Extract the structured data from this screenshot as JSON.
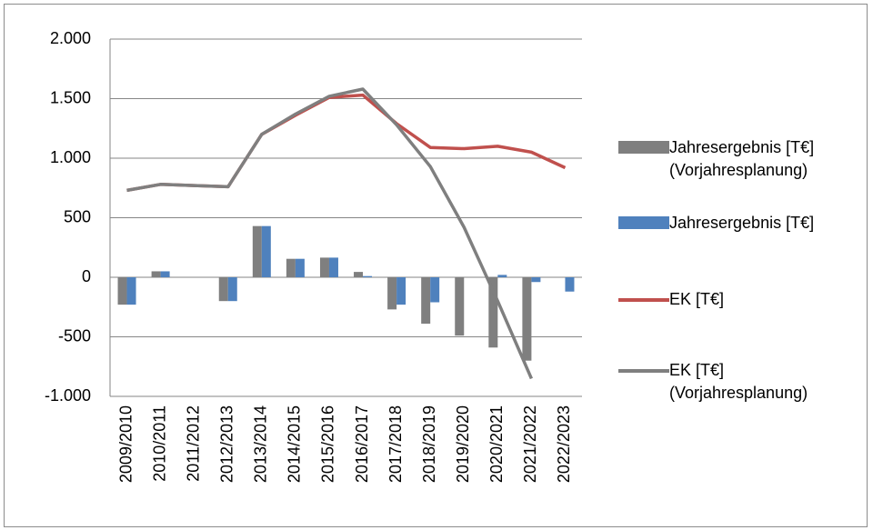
{
  "chart_data": {
    "type": "combo",
    "categories": [
      "2009/2010",
      "2010/2011",
      "2011/2012",
      "2012/2013",
      "2013/2014",
      "2014/2015",
      "2015/2016",
      "2016/2017",
      "2017/2018",
      "2018/2019",
      "2019/2020",
      "2020/2021",
      "2021/2022",
      "2022/2023"
    ],
    "series": [
      {
        "name": "Jahresergebnis [T€] (Vorjahresplanung)",
        "type": "bar",
        "color": "#7f7f7f",
        "values": [
          -230,
          50,
          0,
          -200,
          430,
          155,
          165,
          45,
          -270,
          -390,
          -490,
          -590,
          -700,
          null
        ]
      },
      {
        "name": "Jahresergebnis [T€]",
        "type": "bar",
        "color": "#4f81bd",
        "values": [
          -230,
          50,
          0,
          -200,
          430,
          155,
          165,
          10,
          -230,
          -210,
          null,
          20,
          -40,
          -120
        ]
      },
      {
        "name": "EK [T€]",
        "type": "line",
        "color": "#c0504d",
        "values": [
          730,
          780,
          770,
          760,
          1200,
          1360,
          1510,
          1530,
          1290,
          1090,
          1080,
          1100,
          1050,
          920
        ]
      },
      {
        "name": "EK [T€] (Vorjahresplanung)",
        "type": "line",
        "color": "#7f7f7f",
        "values": [
          730,
          780,
          770,
          760,
          1200,
          1370,
          1520,
          1580,
          1280,
          930,
          420,
          -200,
          -850,
          null
        ]
      }
    ],
    "ylim": [
      -1000,
      2000
    ],
    "yticks": [
      {
        "value": -1000,
        "label": "-1.000"
      },
      {
        "value": -500,
        "label": "-500"
      },
      0,
      500,
      {
        "value": 1000,
        "label": "1.000"
      },
      {
        "value": 1500,
        "label": "1.500"
      },
      {
        "value": 2000,
        "label": "2.000"
      }
    ],
    "grid": true
  }
}
